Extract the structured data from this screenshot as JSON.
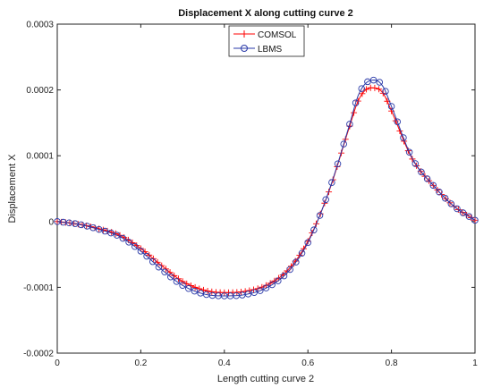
{
  "chart_data": {
    "type": "line",
    "title": "Displacement X along cutting curve 2",
    "xlabel": "Length cutting curve 2",
    "ylabel": "Displacement X",
    "xlim": [
      0,
      1
    ],
    "ylim": [
      -0.0002,
      0.0003
    ],
    "xticks": [
      0,
      0.2,
      0.4,
      0.6,
      0.8,
      1
    ],
    "xtick_labels": [
      "0",
      "0.2",
      "0.4",
      "0.6",
      "0.8",
      "1"
    ],
    "yticks": [
      -0.0002,
      -0.0001,
      0,
      0.0001,
      0.0002,
      0.0003
    ],
    "ytick_labels": [
      "-0.0002",
      "-0.0001",
      "0",
      "0.0001",
      "0.0002",
      "0.0003"
    ],
    "grid": false,
    "legend_position": "top-center",
    "series": [
      {
        "name": "COMSOL",
        "color": "#ff0000",
        "marker": "plus",
        "x": [
          0,
          0.05,
          0.1,
          0.15,
          0.2,
          0.25,
          0.3,
          0.35,
          0.4,
          0.45,
          0.5,
          0.55,
          0.6,
          0.65,
          0.7,
          0.72,
          0.74,
          0.76,
          0.78,
          0.8,
          0.85,
          0.9,
          0.95,
          1
        ],
        "y": [
          0,
          -4e-06,
          -1.1e-05,
          -2.1e-05,
          -4.1e-05,
          -6.7e-05,
          -9.1e-05,
          -0.000104,
          -0.000108,
          -0.000106,
          -9.7e-05,
          -7.5e-05,
          -3e-05,
          4.5e-05,
          0.000145,
          0.000183,
          0.000201,
          0.000203,
          0.000195,
          0.000168,
          9.5e-05,
          5.5e-05,
          2.3e-05,
          2e-06
        ]
      },
      {
        "name": "LBMS",
        "color": "#2a3aa8",
        "marker": "circle",
        "x": [
          0,
          0.05,
          0.1,
          0.15,
          0.2,
          0.25,
          0.3,
          0.35,
          0.4,
          0.45,
          0.5,
          0.55,
          0.6,
          0.65,
          0.7,
          0.72,
          0.74,
          0.76,
          0.78,
          0.8,
          0.85,
          0.9,
          0.95,
          1
        ],
        "y": [
          0,
          -4e-06,
          -1.2e-05,
          -2.3e-05,
          -4.5e-05,
          -7.3e-05,
          -9.7e-05,
          -0.00011,
          -0.000113,
          -0.000111,
          -0.000101,
          -7.8e-05,
          -3.2e-05,
          4.6e-05,
          0.000148,
          0.000191,
          0.000211,
          0.000215,
          0.000205,
          0.000175,
          9.6e-05,
          5.5e-05,
          2.3e-05,
          2e-06
        ]
      }
    ]
  }
}
